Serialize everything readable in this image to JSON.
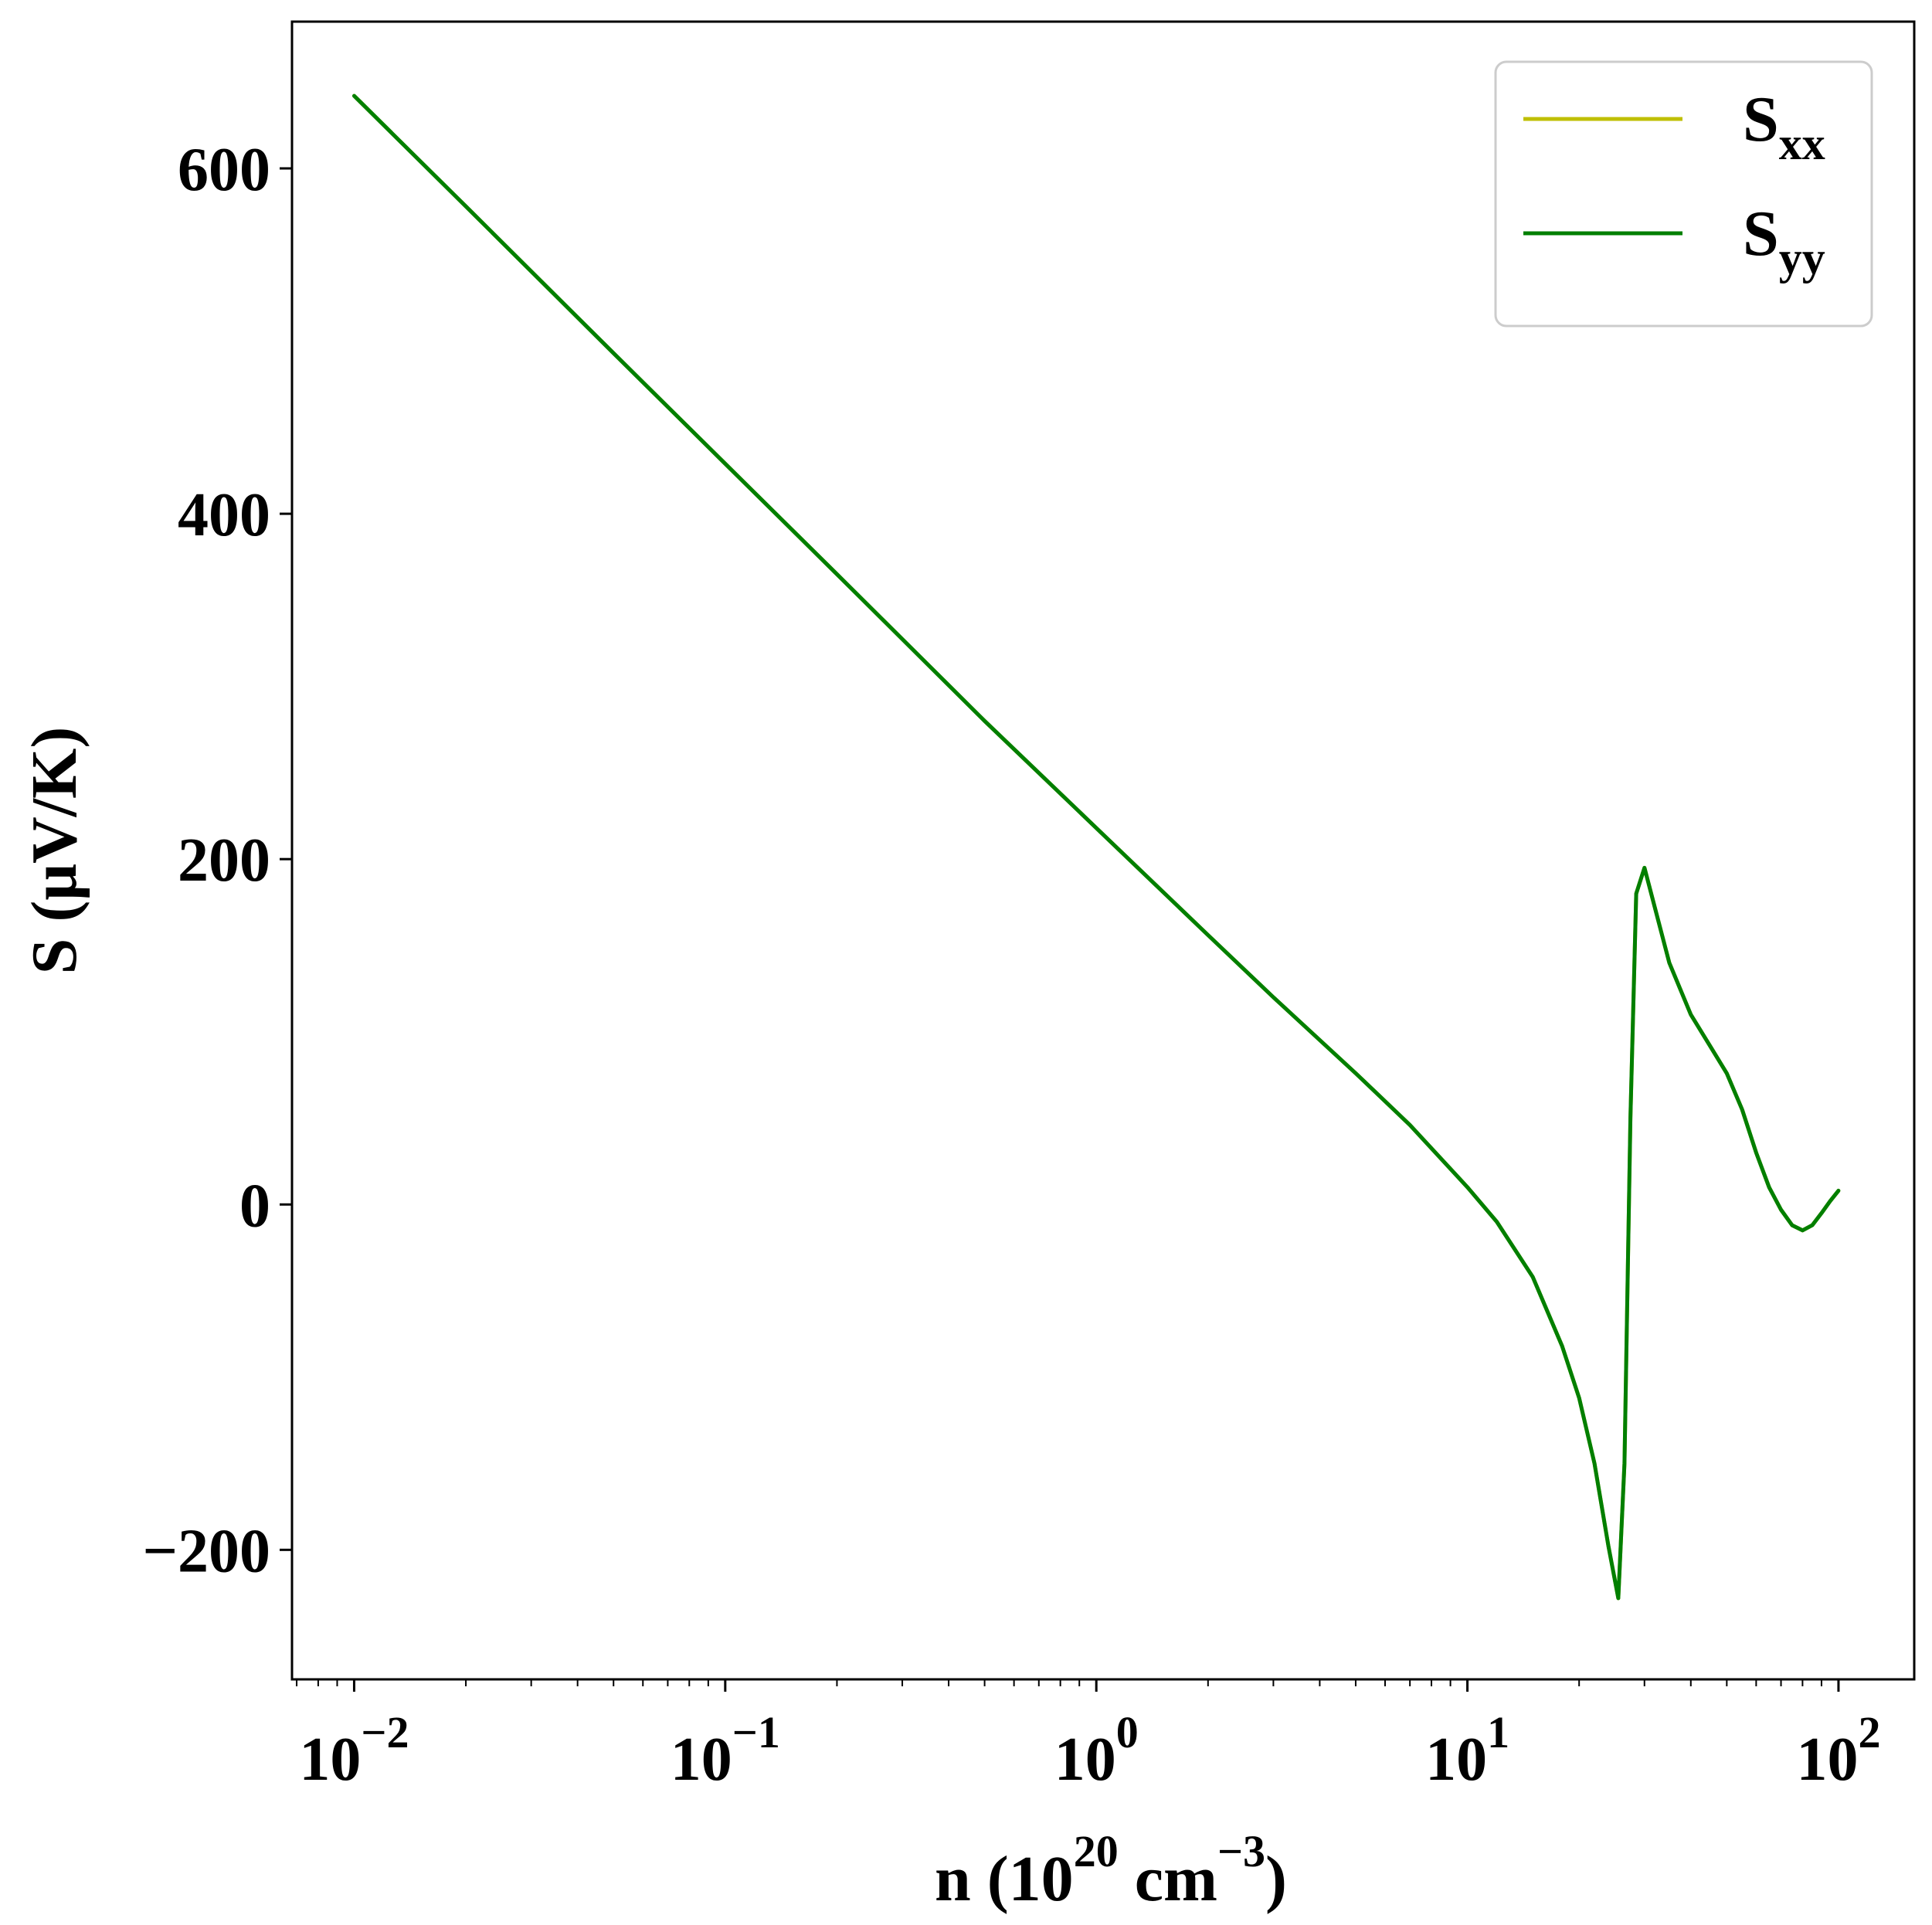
{
  "chart_data": {
    "type": "line",
    "title": "",
    "xlabel": {
      "base": "n (10",
      "sup1": "20",
      "mid": " cm",
      "sup2": "−3",
      "tail": ")"
    },
    "ylabel": "S (μV/K)",
    "xscale": "log",
    "xlim": [
      0.0068,
      160
    ],
    "ylim": [
      -275,
      685
    ],
    "grid": false,
    "legend_position": "top-right",
    "xticks": [
      {
        "value": 0.01,
        "base": "10",
        "exp": "−2"
      },
      {
        "value": 0.1,
        "base": "10",
        "exp": "−1"
      },
      {
        "value": 1,
        "base": "10",
        "exp": "0"
      },
      {
        "value": 10,
        "base": "10",
        "exp": "1"
      },
      {
        "value": 100,
        "base": "10",
        "exp": "2"
      }
    ],
    "yticks": [
      {
        "value": -200,
        "label": "−200"
      },
      {
        "value": 0,
        "label": "0"
      },
      {
        "value": 200,
        "label": "200"
      },
      {
        "value": 400,
        "label": "400"
      },
      {
        "value": 600,
        "label": "600"
      }
    ],
    "series": [
      {
        "name": {
          "base": "S",
          "sub": "xx"
        },
        "color": "#bfbf00",
        "x": [
          0.01,
          0.02,
          0.05,
          0.1,
          0.2,
          0.5,
          1,
          2,
          3,
          5,
          7,
          10,
          12,
          15,
          18,
          20,
          22,
          24,
          25.5,
          26.5,
          27.5,
          28.5,
          30,
          32,
          35,
          40,
          45,
          50,
          55,
          60,
          65,
          70,
          75,
          80,
          85,
          90,
          95,
          100
        ],
        "y": [
          642,
          578,
          493,
          429,
          365,
          280,
          218,
          156,
          120,
          76,
          46,
          10,
          -10,
          -42,
          -82,
          -112,
          -150,
          -198,
          -228,
          -150,
          50,
          180,
          195,
          172,
          140,
          110,
          92,
          76,
          55,
          30,
          10,
          -3,
          -12,
          -15,
          -12,
          -5,
          2,
          8
        ]
      },
      {
        "name": {
          "base": "S",
          "sub": "yy"
        },
        "color": "#007f00",
        "x": [
          0.01,
          0.02,
          0.05,
          0.1,
          0.2,
          0.5,
          1,
          2,
          3,
          5,
          7,
          10,
          12,
          15,
          18,
          20,
          22,
          24,
          25.5,
          26.5,
          27.5,
          28.5,
          30,
          32,
          35,
          40,
          45,
          50,
          55,
          60,
          65,
          70,
          75,
          80,
          85,
          90,
          95,
          100
        ],
        "y": [
          642,
          578,
          493,
          429,
          365,
          280,
          218,
          156,
          120,
          76,
          46,
          10,
          -10,
          -42,
          -82,
          -112,
          -150,
          -198,
          -228,
          -150,
          50,
          180,
          195,
          172,
          140,
          110,
          92,
          76,
          55,
          30,
          10,
          -3,
          -12,
          -15,
          -12,
          -5,
          2,
          8
        ]
      }
    ]
  }
}
